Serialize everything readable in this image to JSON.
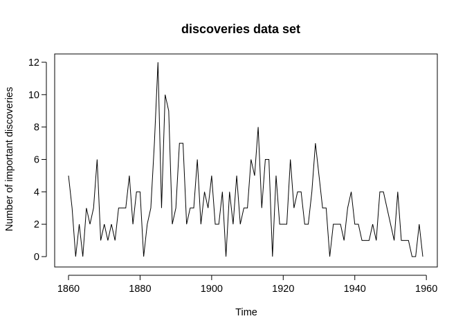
{
  "chart_data": {
    "type": "line",
    "title": "discoveries data set",
    "xlabel": "Time",
    "ylabel": "Number of important discoveries",
    "xlim": [
      1860,
      1959
    ],
    "ylim": [
      0,
      12
    ],
    "x_ticks": [
      1860,
      1880,
      1900,
      1920,
      1940,
      1960
    ],
    "y_ticks": [
      0,
      2,
      4,
      6,
      8,
      10,
      12
    ],
    "grid": false,
    "line_color": "#000000",
    "series": [
      {
        "x_start": 1860,
        "x_step": 1,
        "values": [
          5,
          3,
          0,
          2,
          0,
          3,
          2,
          3,
          6,
          1,
          2,
          1,
          2,
          1,
          3,
          3,
          3,
          5,
          2,
          4,
          4,
          0,
          2,
          3,
          7,
          12,
          3,
          10,
          9,
          2,
          3,
          7,
          7,
          2,
          3,
          3,
          6,
          2,
          4,
          3,
          5,
          2,
          2,
          4,
          0,
          4,
          2,
          5,
          2,
          3,
          3,
          6,
          5,
          8,
          3,
          6,
          6,
          0,
          5,
          2,
          2,
          2,
          6,
          3,
          4,
          4,
          2,
          2,
          4,
          7,
          5,
          3,
          3,
          0,
          2,
          2,
          2,
          1,
          3,
          4,
          2,
          2,
          1,
          1,
          1,
          2,
          1,
          4,
          4,
          3,
          2,
          1,
          4,
          1,
          1,
          1,
          0,
          0,
          2,
          0
        ]
      }
    ]
  }
}
